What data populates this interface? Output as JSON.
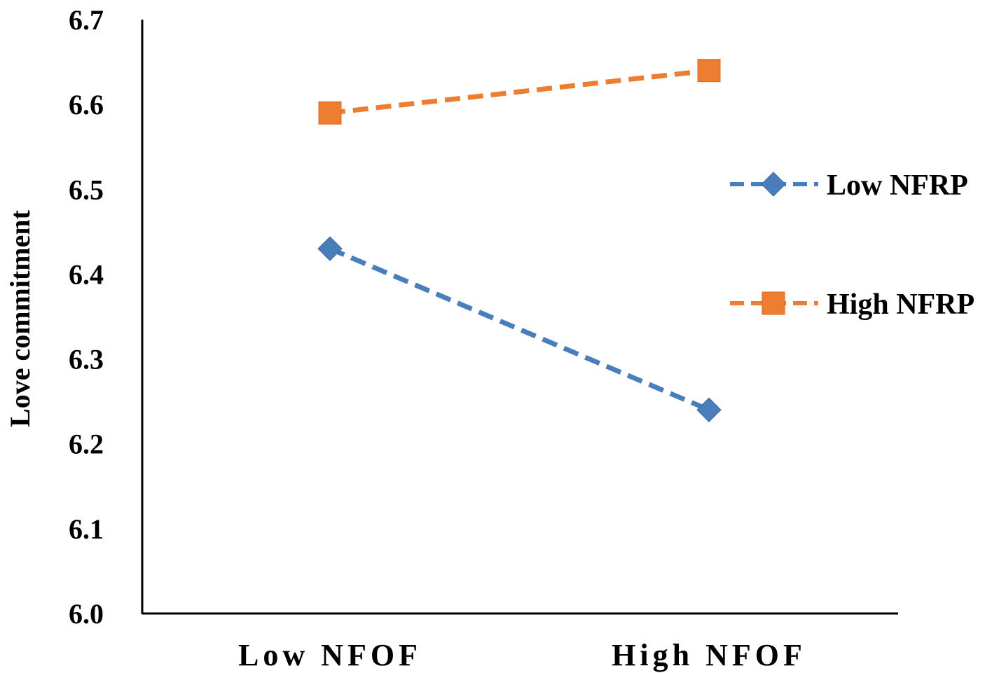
{
  "chart_data": {
    "type": "line",
    "categories": [
      "Low NFOF",
      "High NFOF"
    ],
    "series": [
      {
        "name": "Low NFRP",
        "values": [
          6.43,
          6.24
        ],
        "color": "#4A7EBB",
        "marker": "diamond"
      },
      {
        "name": "High NFRP",
        "values": [
          6.59,
          6.64
        ],
        "color": "#ED7D31",
        "marker": "square"
      }
    ],
    "title": "",
    "xlabel": "",
    "ylabel": "Love commitment",
    "ylim": [
      6.0,
      6.7
    ],
    "yticks": [
      "6.0",
      "6.1",
      "6.2",
      "6.3",
      "6.4",
      "6.5",
      "6.6",
      "6.7"
    ],
    "grid": false,
    "legend_position": "right",
    "line_style": "dashed"
  }
}
